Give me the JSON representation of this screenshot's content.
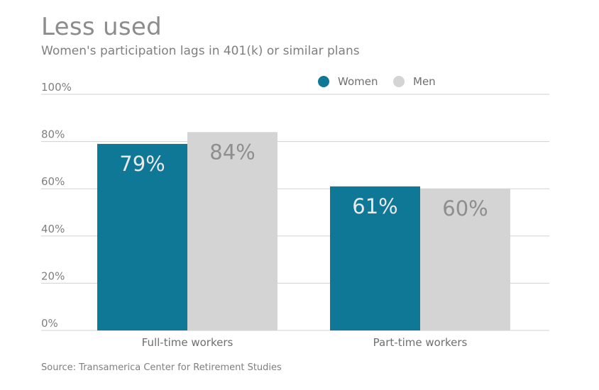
{
  "title": "Less used",
  "subtitle": "Women's participation lags in 401(k) or similar plans",
  "source": "Source: Transamerica Center for Retirement Studies",
  "colors": {
    "women": "#0e7896",
    "men": "#d5d4d5",
    "women_label": "#e9e9e9",
    "men_label": "#8e8e8e",
    "grid": "#d0d0d0"
  },
  "chart_data": {
    "type": "bar",
    "categories": [
      "Full-time workers",
      "Part-time workers"
    ],
    "series": [
      {
        "name": "Women",
        "values": [
          79,
          61
        ],
        "labels": [
          "79%",
          "61%"
        ]
      },
      {
        "name": "Men",
        "values": [
          84,
          60
        ],
        "labels": [
          "84%",
          "60%"
        ]
      }
    ],
    "ylim": [
      0,
      100
    ],
    "yticks": [
      0,
      20,
      40,
      60,
      80,
      100
    ],
    "ytick_labels": [
      "0%",
      "20%",
      "40%",
      "60%",
      "80%",
      "100%"
    ],
    "grid": true,
    "legend": "top-right"
  }
}
